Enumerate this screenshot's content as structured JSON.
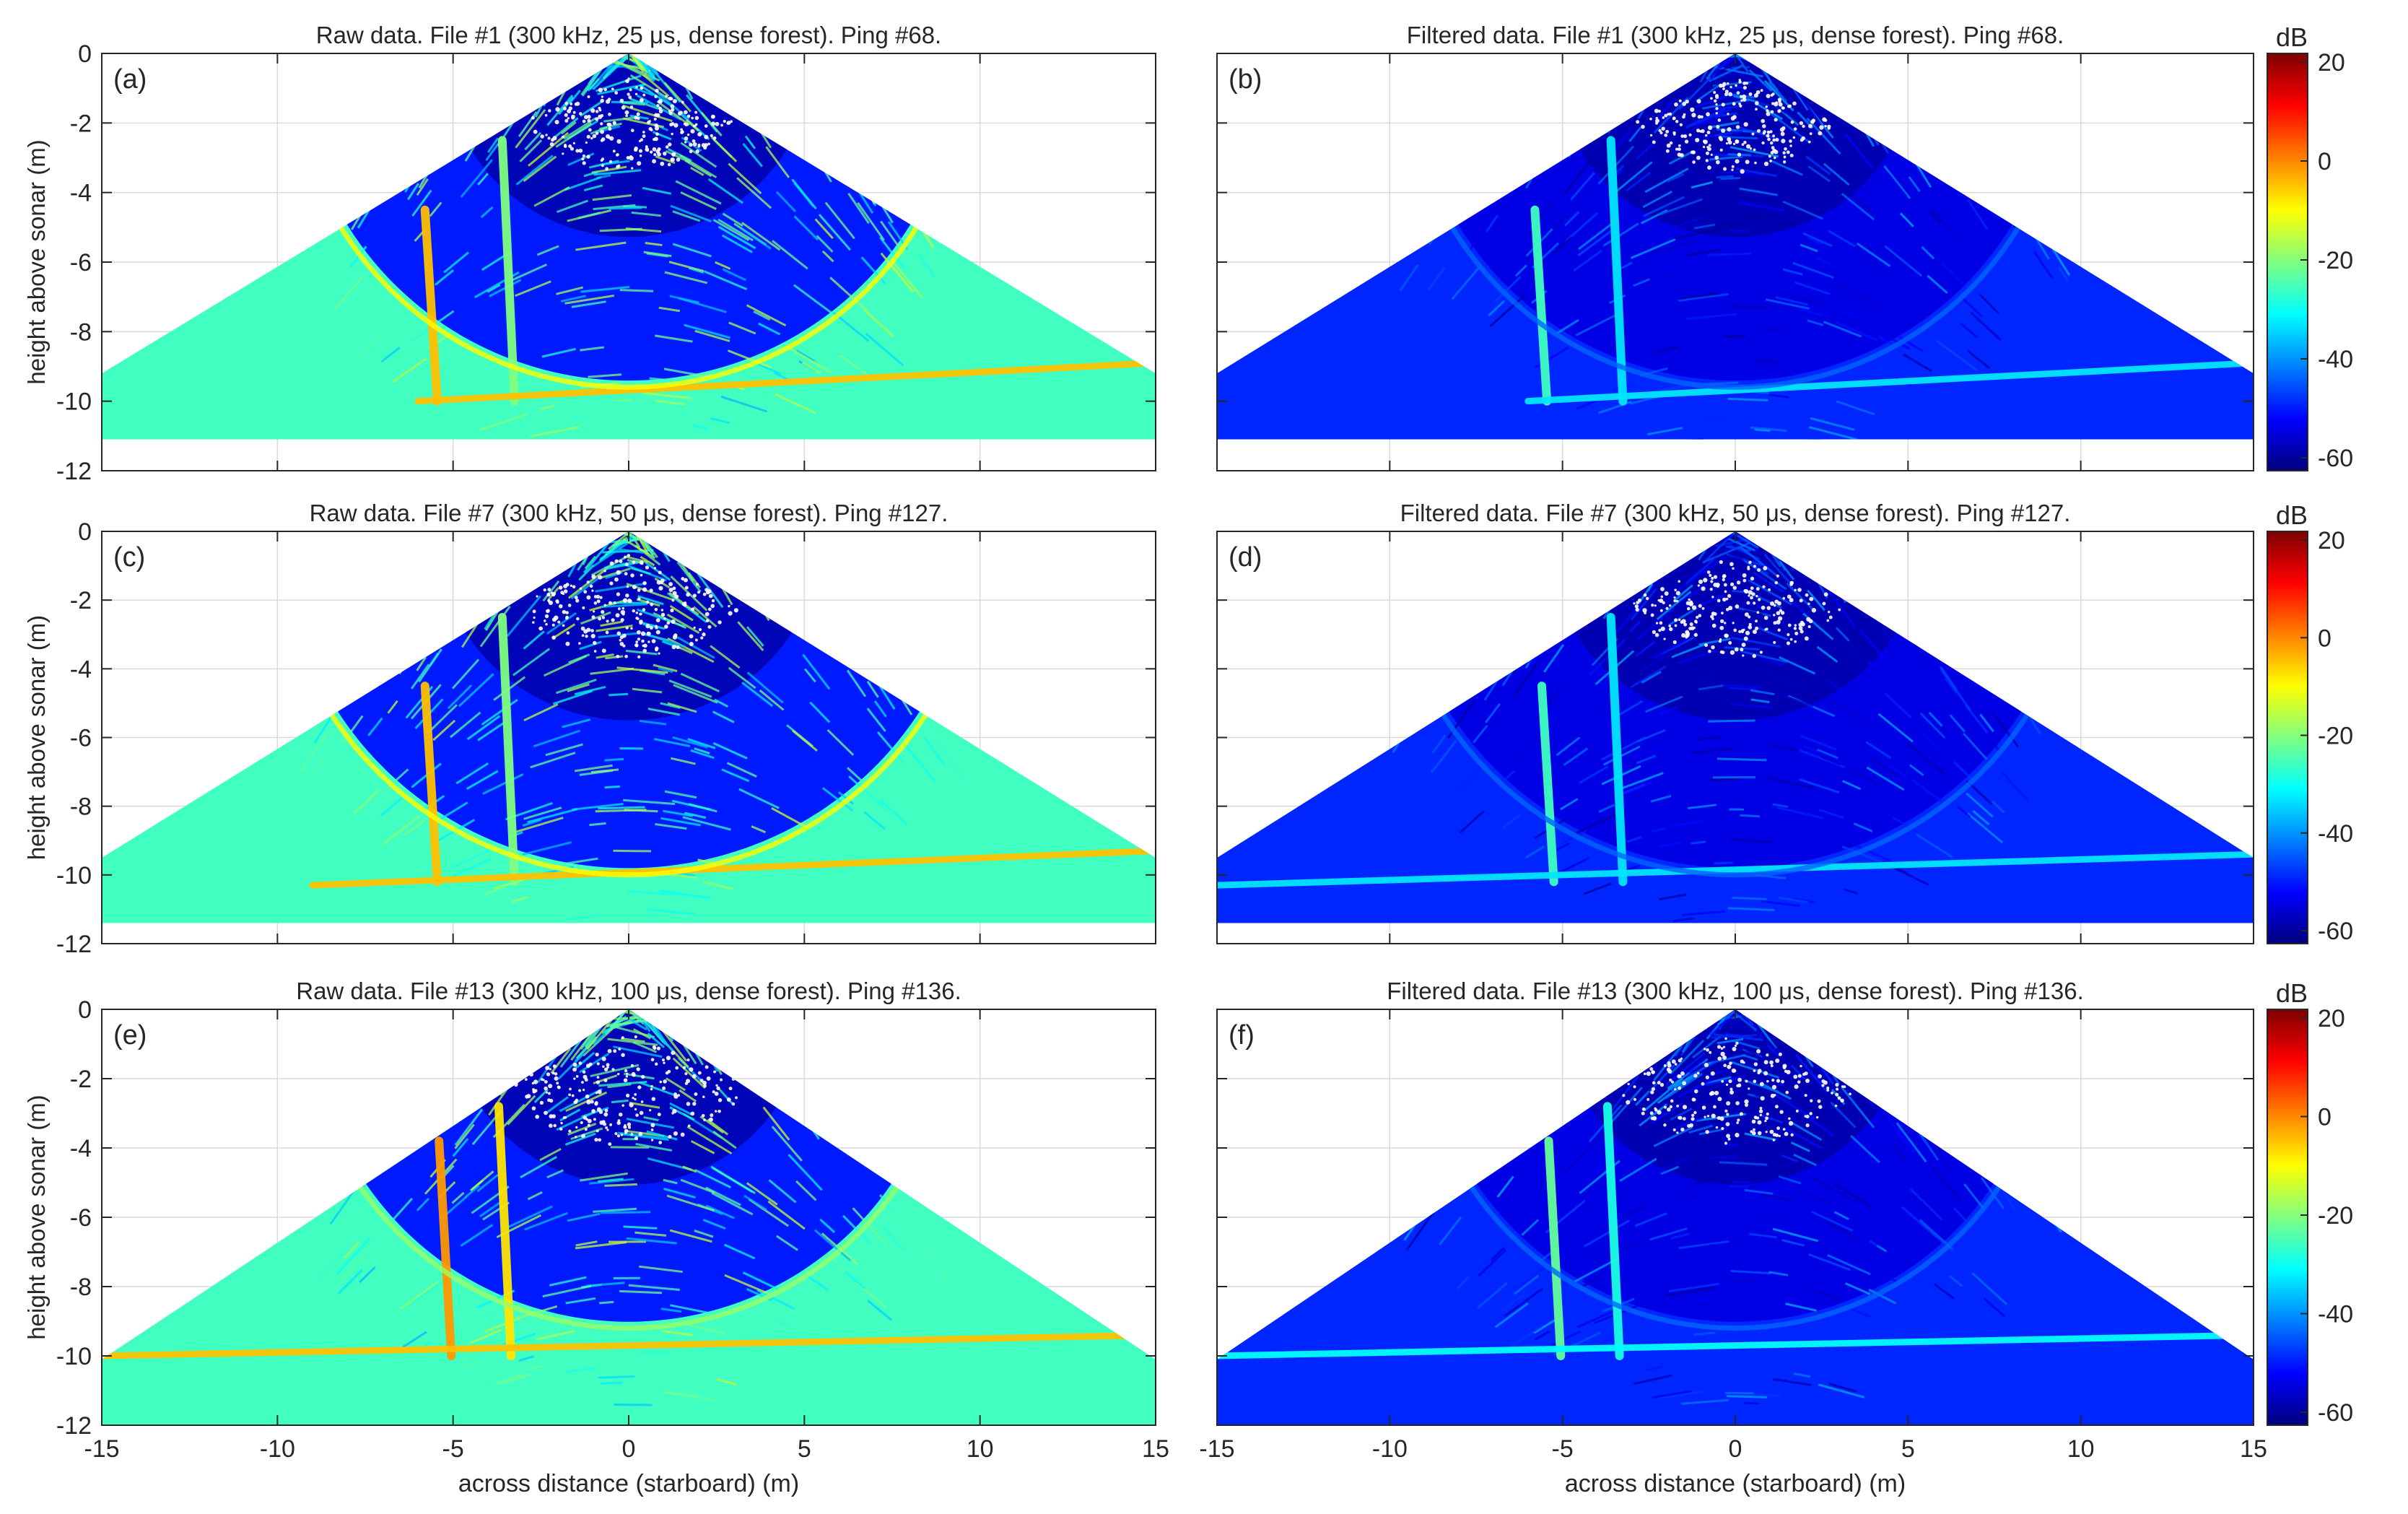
{
  "colorbar_units": "dB",
  "colorbar_ticks": [
    "20",
    "0",
    "-20",
    "-40",
    "-60"
  ],
  "colormap": [
    "#00007f",
    "#0000ff",
    "#0080ff",
    "#00ffff",
    "#80ff80",
    "#ffff00",
    "#ff8000",
    "#ff0000",
    "#7f0000"
  ],
  "chart_data": [
    {
      "type": "heatmap",
      "panel": "(a)",
      "title": "Raw data. File #1 (300 kHz, 25 μs, dense forest). Ping #68.",
      "xlabel": "",
      "ylabel": "height above sonar (m)",
      "xlim": [
        -15,
        15
      ],
      "ylim": [
        -12,
        0
      ],
      "xticks": [
        "-15",
        "-10",
        "-5",
        "0",
        "5",
        "10",
        "15"
      ],
      "yticks": [
        "0",
        "-2",
        "-4",
        "-6",
        "-8",
        "-10",
        "-12"
      ],
      "clim_db": [
        -60,
        20
      ],
      "seafloor_depth_m": -11.1,
      "features": [
        {
          "name": "vertical trunk",
          "x": -5.8,
          "from_y": -4.5,
          "to_y": -10.0,
          "level_db": -5
        },
        {
          "name": "vertical trunk",
          "x": -3.6,
          "from_y": -2.5,
          "to_y": -10.0,
          "level_db": -20
        },
        {
          "name": "horizontal reflector",
          "x0": -6,
          "x1": 15,
          "y0": -10.0,
          "y1": -8.9,
          "level_db": -5
        },
        {
          "name": "range arc",
          "radius_m": 9.6,
          "level_db": -10
        }
      ],
      "near_field_zone_m": 3.0
    },
    {
      "type": "heatmap",
      "panel": "(b)",
      "title": "Filtered data. File #1 (300 kHz, 25 μs, dense forest). Ping #68.",
      "xlabel": "",
      "ylabel": "",
      "xlim": [
        -15,
        15
      ],
      "ylim": [
        -12,
        0
      ],
      "xticks": [
        "-15",
        "-10",
        "-5",
        "0",
        "5",
        "10",
        "15"
      ],
      "yticks": [
        "0",
        "-2",
        "-4",
        "-6",
        "-8",
        "-10",
        "-12"
      ],
      "clim_db": [
        -60,
        20
      ],
      "seafloor_depth_m": -11.1,
      "features": [
        {
          "name": "vertical trunk",
          "x": -5.8,
          "from_y": -4.5,
          "to_y": -10.0,
          "level_db": -25
        },
        {
          "name": "vertical trunk",
          "x": -3.6,
          "from_y": -2.5,
          "to_y": -10.0,
          "level_db": -32
        },
        {
          "name": "horizontal reflector",
          "x0": -6,
          "x1": 15,
          "y0": -10.0,
          "y1": -8.9,
          "level_db": -32
        },
        {
          "name": "range arc",
          "radius_m": 9.6,
          "level_db": -42
        }
      ],
      "near_field_zone_m": 3.0
    },
    {
      "type": "heatmap",
      "panel": "(c)",
      "title": "Raw data. File #7 (300 kHz, 50 μs, dense forest). Ping #127.",
      "xlabel": "",
      "ylabel": "height above sonar (m)",
      "xlim": [
        -15,
        15
      ],
      "ylim": [
        -12,
        0
      ],
      "xticks": [
        "-15",
        "-10",
        "-5",
        "0",
        "5",
        "10",
        "15"
      ],
      "yticks": [
        "0",
        "-2",
        "-4",
        "-6",
        "-8",
        "-10",
        "-12"
      ],
      "clim_db": [
        -60,
        20
      ],
      "seafloor_depth_m": -11.4,
      "features": [
        {
          "name": "vertical trunk",
          "x": -5.8,
          "from_y": -4.5,
          "to_y": -10.2,
          "level_db": -5
        },
        {
          "name": "vertical trunk",
          "x": -3.6,
          "from_y": -2.5,
          "to_y": -10.2,
          "level_db": -20
        },
        {
          "name": "horizontal reflector",
          "x0": -9,
          "x1": 15,
          "y0": -10.3,
          "y1": -9.3,
          "level_db": -5
        },
        {
          "name": "range arc",
          "radius_m": 10.0,
          "level_db": -10
        }
      ],
      "near_field_zone_m": 3.3
    },
    {
      "type": "heatmap",
      "panel": "(d)",
      "title": "Filtered data. File #7 (300 kHz, 50 μs, dense forest). Ping #127.",
      "xlabel": "",
      "ylabel": "",
      "xlim": [
        -15,
        15
      ],
      "ylim": [
        -12,
        0
      ],
      "xticks": [
        "-15",
        "-10",
        "-5",
        "0",
        "5",
        "10",
        "15"
      ],
      "yticks": [
        "0",
        "-2",
        "-4",
        "-6",
        "-8",
        "-10",
        "-12"
      ],
      "clim_db": [
        -60,
        20
      ],
      "seafloor_depth_m": -11.4,
      "features": [
        {
          "name": "vertical trunk",
          "x": -5.6,
          "from_y": -4.5,
          "to_y": -10.2,
          "level_db": -25
        },
        {
          "name": "vertical trunk",
          "x": -3.6,
          "from_y": -2.5,
          "to_y": -10.2,
          "level_db": -32
        },
        {
          "name": "horizontal reflector",
          "x0": -15,
          "x1": 15,
          "y0": -10.3,
          "y1": -9.4,
          "level_db": -32
        },
        {
          "name": "range arc",
          "radius_m": 10.0,
          "level_db": -42
        }
      ],
      "near_field_zone_m": 3.3
    },
    {
      "type": "heatmap",
      "panel": "(e)",
      "title": "Raw data. File #13 (300 kHz, 100 μs, dense forest). Ping #136.",
      "xlabel": "across distance (starboard) (m)",
      "ylabel": "height above sonar (m)",
      "xlim": [
        -15,
        15
      ],
      "ylim": [
        -12,
        0
      ],
      "xticks": [
        "-15",
        "-10",
        "-5",
        "0",
        "5",
        "10",
        "15"
      ],
      "yticks": [
        "0",
        "-2",
        "-4",
        "-6",
        "-8",
        "-10",
        "-12"
      ],
      "clim_db": [
        -60,
        20
      ],
      "seafloor_depth_m": -12.0,
      "features": [
        {
          "name": "vertical trunk",
          "x": -5.4,
          "from_y": -3.8,
          "to_y": -10.0,
          "level_db": -2
        },
        {
          "name": "vertical trunk",
          "x": -3.7,
          "from_y": -2.8,
          "to_y": -10.0,
          "level_db": -8
        },
        {
          "name": "horizontal reflector",
          "x0": -15,
          "x1": 15,
          "y0": -10.0,
          "y1": -9.4,
          "level_db": -5
        },
        {
          "name": "range arc",
          "radius_m": 9.2,
          "level_db": -18
        }
      ],
      "near_field_zone_m": 3.6
    },
    {
      "type": "heatmap",
      "panel": "(f)",
      "title": "Filtered data. File #13 (300 kHz, 100 μs, dense forest). Ping #136.",
      "xlabel": "across distance (starboard) (m)",
      "ylabel": "",
      "xlim": [
        -15,
        15
      ],
      "ylim": [
        -12,
        0
      ],
      "xticks": [
        "-15",
        "-10",
        "-5",
        "0",
        "5",
        "10",
        "15"
      ],
      "yticks": [
        "0",
        "-2",
        "-4",
        "-6",
        "-8",
        "-10",
        "-12"
      ],
      "clim_db": [
        -60,
        20
      ],
      "seafloor_depth_m": -12.0,
      "features": [
        {
          "name": "vertical trunk",
          "x": -5.4,
          "from_y": -3.8,
          "to_y": -10.0,
          "level_db": -22
        },
        {
          "name": "vertical trunk",
          "x": -3.7,
          "from_y": -2.8,
          "to_y": -10.0,
          "level_db": -28
        },
        {
          "name": "horizontal reflector",
          "x0": -15,
          "x1": 15,
          "y0": -10.0,
          "y1": -9.4,
          "level_db": -30
        },
        {
          "name": "range arc",
          "radius_m": 9.2,
          "level_db": -42
        }
      ],
      "near_field_zone_m": 3.6
    }
  ]
}
